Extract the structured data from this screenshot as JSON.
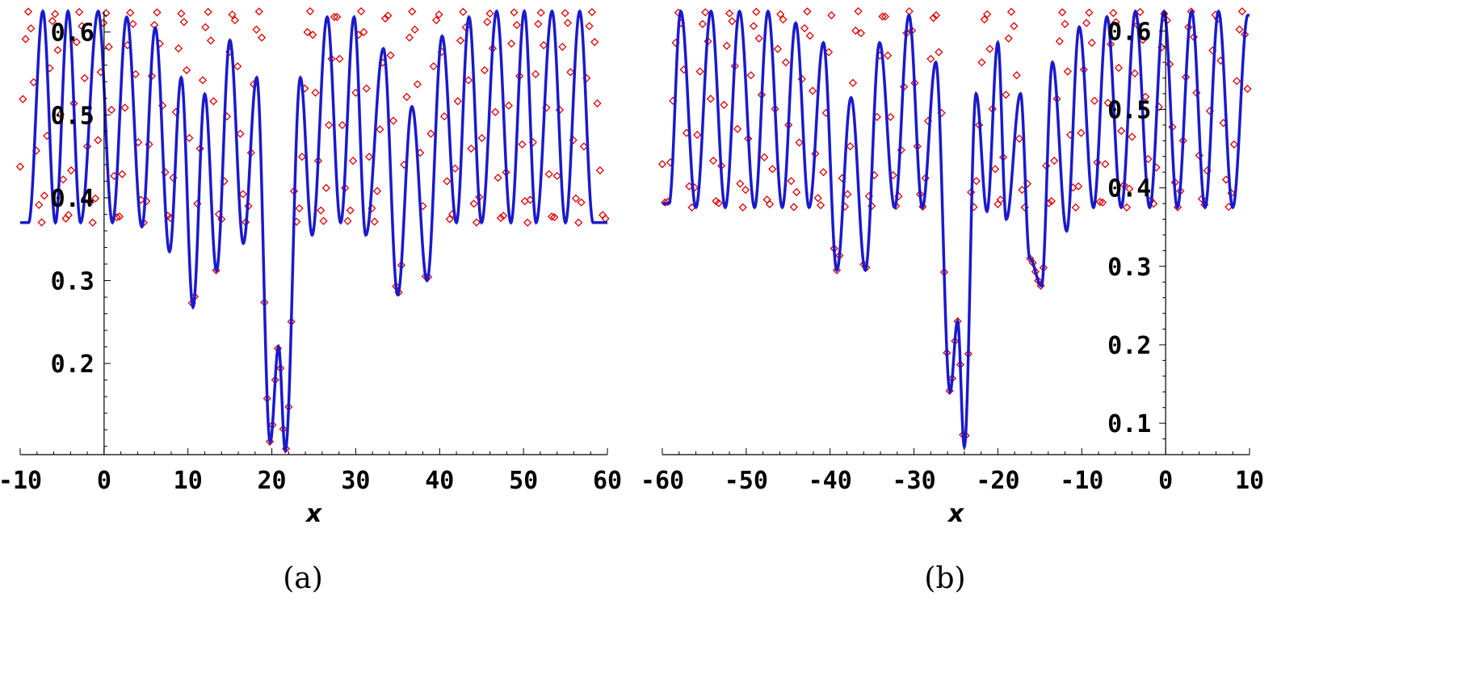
{
  "colors": {
    "curve": "#1a1acc",
    "markers": "#e00000",
    "axis": "#000000"
  },
  "chart_data": [
    {
      "type": "line",
      "panel_caption": "(a)",
      "xlabel": "x",
      "ylabel": "",
      "xlim": [
        -10,
        60
      ],
      "ylim": [
        0.09,
        0.625
      ],
      "x_ticks": [
        -10,
        0,
        10,
        20,
        30,
        40,
        50,
        60
      ],
      "x_tick_labels": [
        "-10",
        "0",
        "10",
        "20",
        "30",
        "40",
        "50",
        "60"
      ],
      "y_ticks": [
        0.2,
        0.3,
        0.4,
        0.5,
        0.6
      ],
      "y_tick_labels": [
        "0.2",
        "0.3",
        "0.4",
        "0.5",
        "0.6"
      ],
      "series": [
        {
          "style": "solid blue line",
          "x_range": [
            -10,
            60
          ],
          "oscillation_high": 0.625,
          "oscillation_low": 0.37,
          "oscillation_period": 3.05,
          "phase_x": -7.2,
          "dip_center": 21,
          "dip_min": 0.1
        },
        {
          "style": "red diamond markers",
          "x_range": [
            -10,
            60
          ],
          "oscillation_high": 0.625,
          "oscillation_low": 0.37,
          "oscillation_period": 3.05,
          "phase_x": -9.0
        }
      ],
      "valleys": [
        {
          "x": -9.0,
          "y": 0.37
        },
        {
          "x": -5.8,
          "y": 0.37
        },
        {
          "x": -2.8,
          "y": 0.37
        },
        {
          "x": 1.0,
          "y": 0.37
        },
        {
          "x": 4.5,
          "y": 0.365
        },
        {
          "x": 7.8,
          "y": 0.335
        },
        {
          "x": 10.6,
          "y": 0.268
        },
        {
          "x": 13.4,
          "y": 0.312
        },
        {
          "x": 16.6,
          "y": 0.345
        },
        {
          "x": 19.8,
          "y": 0.105
        },
        {
          "x": 21.6,
          "y": 0.095
        },
        {
          "x": 24.8,
          "y": 0.355
        },
        {
          "x": 28.2,
          "y": 0.37
        },
        {
          "x": 31.2,
          "y": 0.355
        },
        {
          "x": 35.0,
          "y": 0.283
        },
        {
          "x": 38.5,
          "y": 0.3
        },
        {
          "x": 42.0,
          "y": 0.37
        },
        {
          "x": 45.0,
          "y": 0.37
        },
        {
          "x": 48.5,
          "y": 0.37
        },
        {
          "x": 51.5,
          "y": 0.37
        },
        {
          "x": 55.0,
          "y": 0.37
        },
        {
          "x": 58.3,
          "y": 0.37
        }
      ],
      "peaks": [
        {
          "x": -7.3,
          "y": 0.625
        },
        {
          "x": -4.3,
          "y": 0.625
        },
        {
          "x": -0.7,
          "y": 0.625
        },
        {
          "x": 2.7,
          "y": 0.618
        },
        {
          "x": 6.1,
          "y": 0.605
        },
        {
          "x": 9.2,
          "y": 0.545
        },
        {
          "x": 12.0,
          "y": 0.525
        },
        {
          "x": 15.0,
          "y": 0.59
        },
        {
          "x": 18.2,
          "y": 0.545
        },
        {
          "x": 20.8,
          "y": 0.22
        },
        {
          "x": 23.4,
          "y": 0.545
        },
        {
          "x": 26.6,
          "y": 0.618
        },
        {
          "x": 29.8,
          "y": 0.618
        },
        {
          "x": 33.3,
          "y": 0.58
        },
        {
          "x": 36.7,
          "y": 0.51
        },
        {
          "x": 40.3,
          "y": 0.595
        },
        {
          "x": 43.5,
          "y": 0.618
        },
        {
          "x": 46.8,
          "y": 0.625
        },
        {
          "x": 50.1,
          "y": 0.625
        },
        {
          "x": 53.4,
          "y": 0.625
        },
        {
          "x": 56.7,
          "y": 0.625
        }
      ]
    },
    {
      "type": "line",
      "panel_caption": "(b)",
      "xlabel": "x",
      "ylabel": "",
      "xlim": [
        -60,
        10
      ],
      "ylim": [
        0.06,
        0.625
      ],
      "x_ticks": [
        -60,
        -50,
        -40,
        -30,
        -20,
        -10,
        0,
        10
      ],
      "x_tick_labels": [
        "-60",
        "-50",
        "-40",
        "-30",
        "-20",
        "-10",
        "0",
        "10"
      ],
      "y_ticks": [
        0.1,
        0.2,
        0.3,
        0.4,
        0.5,
        0.6
      ],
      "y_tick_labels": [
        "0.1",
        "0.2",
        "0.3",
        "0.4",
        "0.5",
        "0.6"
      ],
      "series": [
        {
          "style": "solid blue line",
          "x_range": [
            -60,
            10
          ],
          "oscillation_high": 0.625,
          "oscillation_low": 0.375,
          "oscillation_period": 3.05,
          "dip_center": -24.5,
          "dip_min": 0.07
        },
        {
          "style": "red diamond markers",
          "x_range": [
            -60,
            10
          ],
          "oscillation_high": 0.625,
          "oscillation_low": 0.375,
          "oscillation_period": 3.05,
          "phase_x": -58.0
        }
      ],
      "valleys": [
        {
          "x": -59.2,
          "y": 0.38
        },
        {
          "x": -56.0,
          "y": 0.375
        },
        {
          "x": -52.5,
          "y": 0.375
        },
        {
          "x": -49.0,
          "y": 0.375
        },
        {
          "x": -45.7,
          "y": 0.375
        },
        {
          "x": -42.5,
          "y": 0.375
        },
        {
          "x": -39.2,
          "y": 0.295
        },
        {
          "x": -35.8,
          "y": 0.295
        },
        {
          "x": -32.3,
          "y": 0.375
        },
        {
          "x": -29.0,
          "y": 0.375
        },
        {
          "x": -25.7,
          "y": 0.14
        },
        {
          "x": -24.0,
          "y": 0.07
        },
        {
          "x": -21.3,
          "y": 0.37
        },
        {
          "x": -19.0,
          "y": 0.36
        },
        {
          "x": -16.2,
          "y": 0.31
        },
        {
          "x": -14.8,
          "y": 0.275
        },
        {
          "x": -11.8,
          "y": 0.345
        },
        {
          "x": -8.6,
          "y": 0.375
        },
        {
          "x": -5.3,
          "y": 0.375
        },
        {
          "x": -1.9,
          "y": 0.375
        },
        {
          "x": 1.4,
          "y": 0.375
        },
        {
          "x": 4.7,
          "y": 0.375
        },
        {
          "x": 8.0,
          "y": 0.375
        }
      ],
      "peaks": [
        {
          "x": -57.8,
          "y": 0.625
        },
        {
          "x": -54.2,
          "y": 0.625
        },
        {
          "x": -50.8,
          "y": 0.625
        },
        {
          "x": -47.4,
          "y": 0.625
        },
        {
          "x": -44.1,
          "y": 0.61
        },
        {
          "x": -40.8,
          "y": 0.585
        },
        {
          "x": -37.5,
          "y": 0.515
        },
        {
          "x": -34.1,
          "y": 0.585
        },
        {
          "x": -30.6,
          "y": 0.62
        },
        {
          "x": -27.4,
          "y": 0.56
        },
        {
          "x": -24.8,
          "y": 0.23
        },
        {
          "x": -22.6,
          "y": 0.52
        },
        {
          "x": -20.0,
          "y": 0.585
        },
        {
          "x": -17.3,
          "y": 0.52
        },
        {
          "x": -13.5,
          "y": 0.56
        },
        {
          "x": -10.3,
          "y": 0.605
        },
        {
          "x": -7.0,
          "y": 0.618
        },
        {
          "x": -3.6,
          "y": 0.625
        },
        {
          "x": -0.2,
          "y": 0.625
        },
        {
          "x": 3.1,
          "y": 0.625
        },
        {
          "x": 6.3,
          "y": 0.625
        },
        {
          "x": 9.8,
          "y": 0.62
        }
      ]
    }
  ]
}
